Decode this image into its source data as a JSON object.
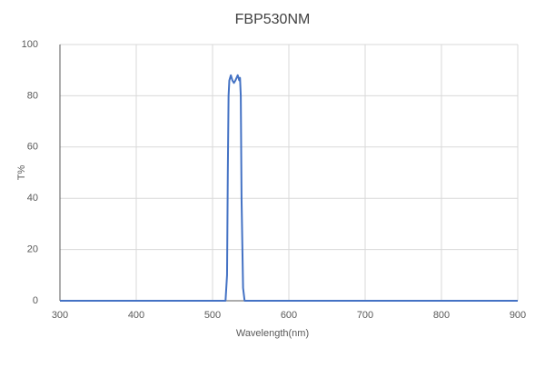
{
  "chart_data": {
    "type": "line",
    "title": "FBP530NM",
    "x_label": "Wavelength(nm)",
    "y_label": "T%",
    "x": [
      300,
      517,
      519,
      520,
      521,
      522,
      524,
      526,
      528,
      530,
      533,
      535,
      536,
      537,
      538,
      540,
      542,
      900
    ],
    "series": [
      {
        "name": "T%",
        "color": "#4472c4",
        "values": [
          0,
          0,
          10,
          50,
          80,
          86,
          88,
          86,
          85,
          86,
          88,
          86,
          87,
          80,
          40,
          5,
          0,
          0
        ]
      }
    ],
    "xlim": [
      300,
      900
    ],
    "xticks": [
      300,
      400,
      500,
      600,
      700,
      800,
      900
    ],
    "ylim": [
      0,
      100
    ],
    "yticks": [
      0,
      20,
      40,
      60,
      80,
      100
    ],
    "grid": true
  }
}
